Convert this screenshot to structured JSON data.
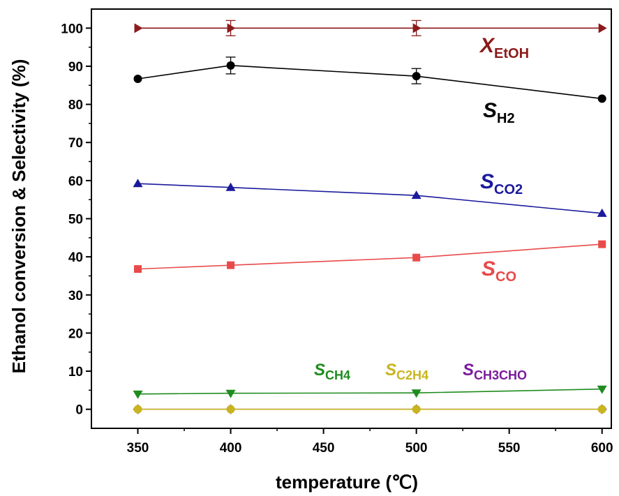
{
  "chart_data": {
    "type": "line",
    "xlabel": "temperature (℃)",
    "ylabel": "Ethanol conversion &  Selectivity (%)",
    "xlim": [
      325,
      605
    ],
    "ylim": [
      -5,
      105
    ],
    "xticks": [
      350,
      400,
      450,
      500,
      550,
      600
    ],
    "yticks": [
      0,
      10,
      20,
      30,
      40,
      50,
      60,
      70,
      80,
      90,
      100
    ],
    "grid": false,
    "x": [
      350,
      400,
      500,
      600
    ],
    "series": [
      {
        "name": "X",
        "sub": "EtOH",
        "color": "#8B1A1A",
        "marker": "triangle-right",
        "values": [
          100,
          100,
          100,
          100
        ],
        "errors": [
          0,
          2,
          2,
          0
        ]
      },
      {
        "name": "S",
        "sub": "H2",
        "color": "#000000",
        "marker": "circle",
        "values": [
          86.7,
          90.2,
          87.4,
          81.5
        ],
        "errors": [
          0,
          2.2,
          2.0,
          0
        ]
      },
      {
        "name": "S",
        "sub": "CO2",
        "color": "#1A1A9C",
        "marker": "triangle-up",
        "values": [
          59.2,
          58.2,
          56.1,
          51.4
        ],
        "errors": [
          0,
          0,
          0,
          0
        ]
      },
      {
        "name": "S",
        "sub": "CO",
        "color": "#E84A4A",
        "marker": "square",
        "values": [
          36.8,
          37.8,
          39.8,
          43.3
        ],
        "errors": [
          0,
          0,
          0,
          0
        ]
      },
      {
        "name": "S",
        "sub": "CH4",
        "color": "#1E8C1E",
        "marker": "triangle-down",
        "values": [
          4.0,
          4.2,
          4.3,
          5.3
        ],
        "errors": [
          0,
          0,
          0,
          0
        ]
      },
      {
        "name": "S",
        "sub": "C2H4",
        "color": "#C8B41E",
        "marker": "circle",
        "values": [
          0,
          0,
          0,
          0
        ],
        "errors": [
          0,
          0,
          0,
          0
        ]
      },
      {
        "name": "S",
        "sub": "CH3CHO",
        "color": "#7A1A9C",
        "marker": "diamond",
        "values": [
          0,
          0,
          0,
          0
        ],
        "errors": [
          0,
          0,
          0,
          0
        ]
      }
    ]
  }
}
